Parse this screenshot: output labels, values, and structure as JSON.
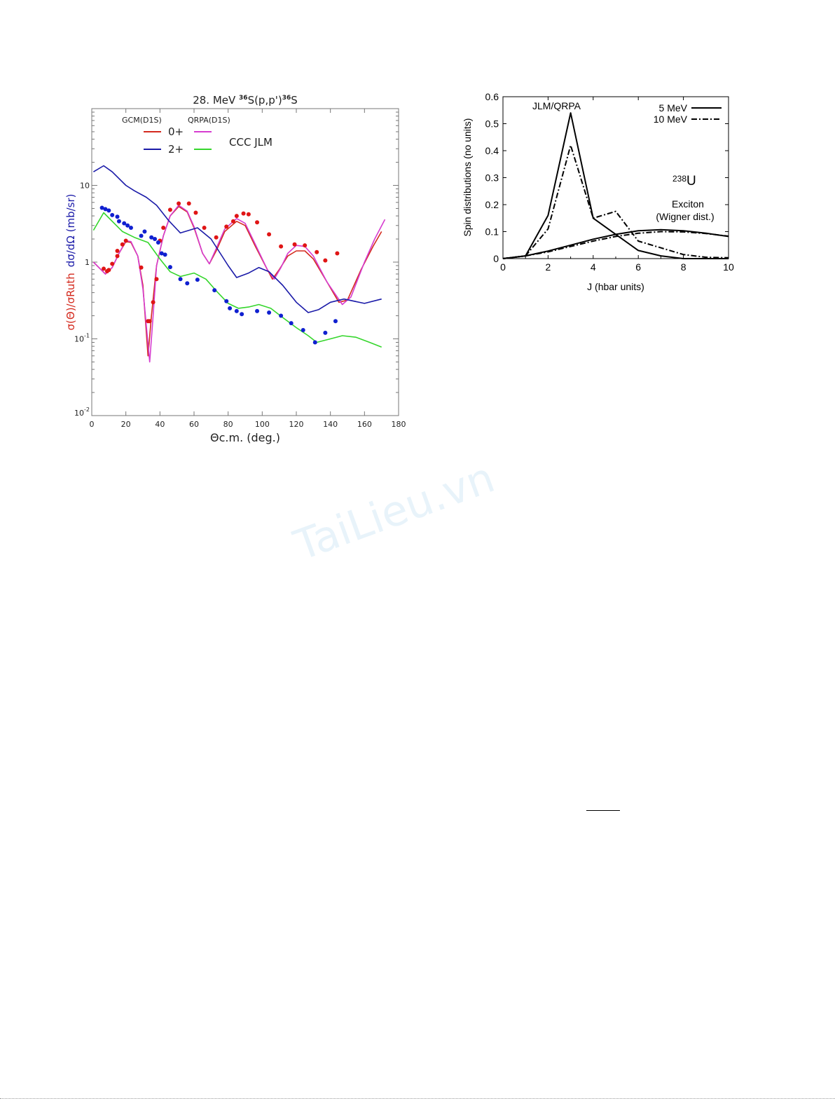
{
  "watermark": "TaiLieu.vn",
  "chart_data": [
    {
      "type": "line",
      "title": {
        "energy": "28. MeV ",
        "mass1": "36",
        "reaction": "S(p,p')",
        "mass2": "36",
        "element": "S"
      },
      "xlabel": "Θc.m. (deg.)",
      "ylabel_red": "σ(Θ)/σRuth",
      "ylabel_blue": "dσ/dΩ (mb/sr)",
      "xlim": [
        0,
        180
      ],
      "ylim": [
        0.01,
        100
      ],
      "yscale": "log",
      "xticks": [
        "0",
        "20",
        "40",
        "60",
        "80",
        "100",
        "120",
        "140",
        "160",
        "180"
      ],
      "yticks": [
        {
          "label": "10",
          "sup": "-2"
        },
        {
          "label": "10",
          "sup": "-1"
        },
        {
          "label": "1",
          "sup": ""
        },
        {
          "label": "10",
          "sup": ""
        }
      ],
      "legend": {
        "gcm_header": "GCM(D1S)",
        "qrpa_header": "QRPA(D1S)",
        "row1": "0+",
        "row2": "2+",
        "ccc": "CCC JLM"
      },
      "colors": {
        "gcm0": "#d42a1e",
        "qrpa0": "#d63cd0",
        "gcm2": "#1a1aa8",
        "jlm2": "#35d62c",
        "data0": "#e01515",
        "data2": "#1020d0"
      },
      "series": [
        {
          "name": "GCM 0+",
          "color": "gcm0",
          "x": [
            1,
            8,
            12,
            16,
            20,
            23,
            27,
            30,
            33,
            35,
            38,
            42,
            46,
            51,
            56,
            60,
            65,
            69,
            73,
            78,
            85,
            90,
            96,
            103,
            106,
            110,
            115,
            120,
            125,
            130,
            138,
            145,
            150,
            158,
            165,
            170
          ],
          "y": [
            1.0,
            0.7,
            0.85,
            1.3,
            1.85,
            1.8,
            1.2,
            0.5,
            0.06,
            0.2,
            0.9,
            2.2,
            4,
            5.3,
            4.5,
            2.8,
            1.3,
            0.95,
            1.4,
            2.5,
            3.4,
            3.0,
            1.6,
            0.8,
            0.6,
            0.8,
            1.2,
            1.4,
            1.4,
            1.1,
            0.55,
            0.3,
            0.32,
            0.8,
            1.6,
            2.5
          ]
        },
        {
          "name": "QRPA 0+",
          "color": "qrpa0",
          "x": [
            1,
            8,
            12,
            16,
            20,
            23,
            27,
            30,
            34,
            36,
            38,
            42,
            46,
            51,
            56,
            60,
            65,
            69,
            73,
            78,
            85,
            90,
            96,
            103,
            107,
            111,
            115,
            120,
            125,
            130,
            138,
            147,
            152,
            160,
            166,
            172
          ],
          "y": [
            1.0,
            0.7,
            0.85,
            1.3,
            1.9,
            1.85,
            1.2,
            0.45,
            0.05,
            0.2,
            0.9,
            2.2,
            4,
            5.5,
            4.6,
            2.9,
            1.3,
            0.95,
            1.5,
            2.7,
            3.7,
            3.2,
            1.7,
            0.8,
            0.6,
            0.85,
            1.3,
            1.65,
            1.6,
            1.2,
            0.55,
            0.28,
            0.35,
            1.0,
            2.0,
            3.6
          ]
        },
        {
          "name": "GCM 2+",
          "color": "gcm2",
          "x": [
            1,
            7,
            12,
            20,
            25,
            32,
            38,
            45,
            52,
            62,
            70,
            80,
            85,
            92,
            98,
            104,
            112,
            120,
            127,
            133,
            140,
            148,
            160,
            170
          ],
          "y": [
            15,
            18,
            15,
            10,
            8.5,
            7,
            5.5,
            3.5,
            2.4,
            2.8,
            2,
            0.9,
            0.63,
            0.72,
            0.85,
            0.75,
            0.5,
            0.3,
            0.22,
            0.24,
            0.3,
            0.33,
            0.29,
            0.33
          ]
        },
        {
          "name": "JLM 2+",
          "color": "jlm2",
          "x": [
            1,
            7,
            12,
            18,
            25,
            33,
            40,
            46,
            52,
            60,
            67,
            74,
            80,
            86,
            92,
            98,
            105,
            112,
            120,
            127,
            132,
            140,
            147,
            155,
            163,
            170
          ],
          "y": [
            2.6,
            4.4,
            3.4,
            2.5,
            2.1,
            1.8,
            1.1,
            0.75,
            0.65,
            0.72,
            0.6,
            0.4,
            0.29,
            0.25,
            0.26,
            0.28,
            0.25,
            0.19,
            0.14,
            0.11,
            0.09,
            0.1,
            0.11,
            0.105,
            0.09,
            0.078
          ]
        }
      ],
      "points": [
        {
          "name": "data 0+",
          "color": "data0",
          "x": [
            7,
            9,
            10,
            12,
            15,
            15,
            18,
            20,
            29,
            33,
            34,
            36,
            38,
            40,
            42,
            46,
            51,
            57,
            61,
            66,
            73,
            79,
            83,
            85,
            89,
            92,
            97,
            104,
            111,
            119,
            125,
            132,
            137,
            144
          ],
          "y": [
            0.82,
            0.76,
            0.79,
            0.95,
            1.2,
            1.4,
            1.7,
            1.9,
            0.85,
            0.17,
            0.17,
            0.3,
            0.6,
            1.9,
            2.8,
            4.8,
            5.8,
            5.8,
            4.4,
            2.8,
            2.1,
            2.9,
            3.4,
            4.0,
            4.3,
            4.2,
            3.3,
            2.3,
            1.6,
            1.7,
            1.65,
            1.35,
            1.05,
            1.3
          ]
        },
        {
          "name": "data 2+",
          "color": "data2",
          "x": [
            6,
            8,
            10,
            12,
            15,
            16,
            19,
            21,
            23,
            29,
            31,
            35,
            37,
            39,
            41,
            43,
            46,
            52,
            56,
            62,
            72,
            79,
            81,
            85,
            88,
            97,
            104,
            111,
            117,
            124,
            131,
            137,
            143
          ],
          "y": [
            5.1,
            4.9,
            4.7,
            4.1,
            3.9,
            3.4,
            3.2,
            3.0,
            2.8,
            2.2,
            2.5,
            2.1,
            2.0,
            1.8,
            1.3,
            1.25,
            0.86,
            0.6,
            0.53,
            0.59,
            0.43,
            0.31,
            0.25,
            0.23,
            0.21,
            0.23,
            0.22,
            0.2,
            0.16,
            0.13,
            0.09,
            0.12,
            0.17
          ]
        }
      ]
    },
    {
      "type": "line",
      "xlabel": "J (hbar units)",
      "ylabel": "Spin distributions (no units)",
      "xlim": [
        0,
        10
      ],
      "ylim": [
        0,
        0.6
      ],
      "xticks": [
        "0",
        "2",
        "4",
        "6",
        "8",
        "10"
      ],
      "yticks": [
        "0",
        "0.1",
        "0.2",
        "0.3",
        "0.4",
        "0.5",
        "0.6"
      ],
      "annotations": {
        "jlm": "JLM/QRPA",
        "nucleus_mass": "238",
        "nucleus": "U",
        "exciton": "Exciton",
        "wigner": "(Wigner dist.)"
      },
      "legend": [
        {
          "label": "5 MeV",
          "style": "solid"
        },
        {
          "label": "10 MeV",
          "style": "dash-dot"
        }
      ],
      "x": [
        0,
        1,
        2,
        3,
        4,
        5,
        6,
        7,
        8,
        9,
        10
      ],
      "series": [
        {
          "name": "JLM/QRPA 5 MeV",
          "style": "solid",
          "y": [
            0,
            0.01,
            0.16,
            0.54,
            0.15,
            0.09,
            0.03,
            0.01,
            0,
            0,
            0
          ]
        },
        {
          "name": "JLM/QRPA 10 MeV",
          "style": "dash-dot",
          "y": [
            0,
            0.01,
            0.11,
            0.42,
            0.15,
            0.175,
            0.065,
            0.04,
            0.015,
            0.005,
            0.003
          ]
        },
        {
          "name": "Exciton 5 MeV",
          "style": "solid",
          "y": [
            0,
            0.01,
            0.028,
            0.05,
            0.072,
            0.09,
            0.103,
            0.107,
            0.103,
            0.094,
            0.082
          ]
        },
        {
          "name": "Exciton 10 MeV",
          "style": "dash-dot",
          "y": [
            0,
            0.01,
            0.025,
            0.045,
            0.065,
            0.082,
            0.094,
            0.1,
            0.099,
            0.093,
            0.083
          ]
        }
      ]
    }
  ]
}
